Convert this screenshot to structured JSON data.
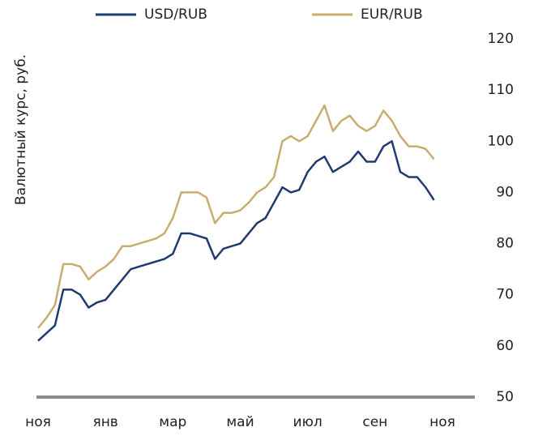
{
  "chart_data": {
    "type": "line",
    "y_label": "Валютный курс, руб.",
    "categories": [
      "ноя",
      null,
      null,
      null,
      null,
      null,
      null,
      null,
      "янв",
      null,
      null,
      null,
      null,
      null,
      null,
      null,
      "мар",
      null,
      null,
      null,
      null,
      null,
      null,
      null,
      "май",
      null,
      null,
      null,
      null,
      null,
      null,
      null,
      "июл",
      null,
      null,
      null,
      null,
      null,
      null,
      null,
      "сен",
      null,
      null,
      null,
      null,
      null,
      null,
      null,
      "ноя"
    ],
    "series": [
      {
        "name": "USD/RUB",
        "color": "#1f3a6e",
        "values": [
          61,
          62.5,
          64,
          71,
          71,
          70,
          67.5,
          68.5,
          69,
          71,
          73,
          75,
          75.5,
          76,
          76.5,
          77,
          78,
          82,
          82,
          81.5,
          81,
          77,
          79,
          79.5,
          80,
          82,
          84,
          85,
          88,
          91,
          90,
          90.5,
          94,
          96,
          97,
          94,
          95,
          96,
          98,
          96,
          96,
          99,
          100,
          94,
          93,
          93,
          91,
          88.5,
          null
        ]
      },
      {
        "name": "EUR/RUB",
        "color": "#c9ad6e",
        "values": [
          63.5,
          65.5,
          68,
          76,
          76,
          75.5,
          73,
          74.5,
          75.5,
          77,
          79.5,
          79.5,
          80,
          80.5,
          81,
          82,
          85,
          90,
          90,
          90,
          89,
          84,
          86,
          86,
          86.5,
          88,
          90,
          91,
          93,
          100,
          101,
          100,
          101,
          104,
          107,
          102,
          104,
          105,
          103,
          102,
          103,
          106,
          104,
          101,
          99,
          99,
          98.5,
          96.5,
          null
        ]
      }
    ],
    "ylim": [
      50,
      120
    ],
    "yticks": [
      50,
      60,
      70,
      80,
      90,
      100,
      110,
      120
    ],
    "legend": "top"
  }
}
